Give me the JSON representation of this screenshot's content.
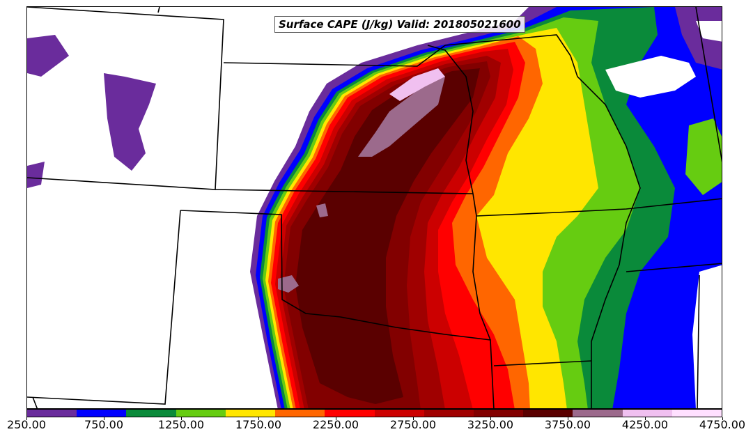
{
  "title": "Surface CAPE (J/kg) Valid: 201805021600",
  "colorbar": {
    "min": 250,
    "max": 4750,
    "interval": 250,
    "colors": [
      "#6a2c9c",
      "#0000ff",
      "#0a8a3a",
      "#66cc11",
      "#ffe600",
      "#ff6600",
      "#ff0000",
      "#cc0000",
      "#a00000",
      "#820000",
      "#5a0000",
      "#9c6a8c",
      "#f0c0f0",
      "#ffe0ff"
    ],
    "tick_labels": [
      "250.00",
      "750.00",
      "1250.00",
      "1750.00",
      "2250.00",
      "2750.00",
      "3250.00",
      "3750.00",
      "4250.00",
      "4750.00"
    ],
    "tick_values": [
      250,
      750,
      1250,
      1750,
      2250,
      2750,
      3250,
      3750,
      4250,
      4750
    ]
  },
  "legend_colors": {
    "purple": "#6a2c9c",
    "blue": "#0000ff",
    "dark_green": "#0a8a3a",
    "light_green": "#66cc11",
    "yellow": "#ffe600",
    "orange": "#ff6600",
    "red": "#ff0000",
    "dark_red": "#a00000",
    "maroon": "#5a0000",
    "mauve": "#9c6a8c",
    "pink": "#f0c0f0"
  }
}
